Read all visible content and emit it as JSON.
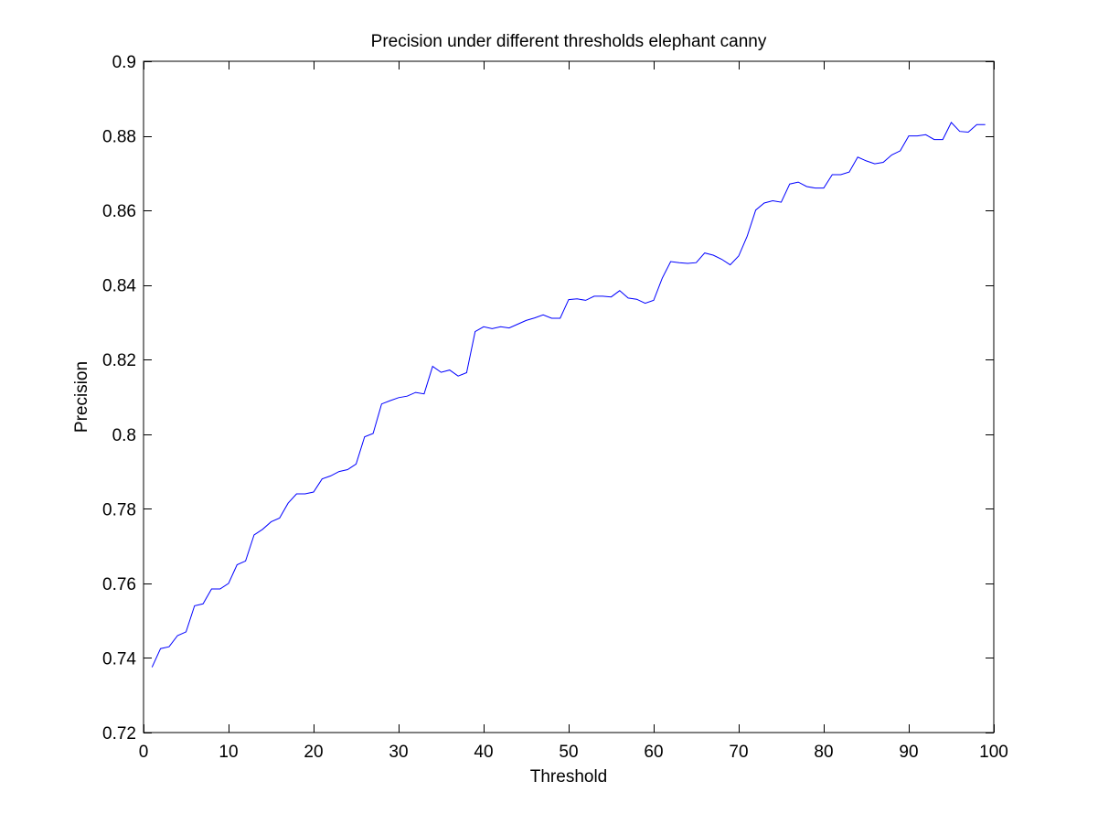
{
  "chart_data": {
    "type": "line",
    "title": "Precision under different thresholds elephant canny",
    "xlabel": "Threshold",
    "ylabel": "Precision",
    "xlim": [
      0,
      100
    ],
    "ylim": [
      0.72,
      0.9
    ],
    "x_ticks": [
      0,
      10,
      20,
      30,
      40,
      50,
      60,
      70,
      80,
      90,
      100
    ],
    "x_tick_labels": [
      "0",
      "10",
      "20",
      "30",
      "40",
      "50",
      "60",
      "70",
      "80",
      "90",
      "100"
    ],
    "y_ticks": [
      0.72,
      0.74,
      0.76,
      0.78,
      0.8,
      0.82,
      0.84,
      0.86,
      0.88,
      0.9
    ],
    "y_tick_labels": [
      "0.72",
      "0.74",
      "0.76",
      "0.78",
      "0.8",
      "0.82",
      "0.84",
      "0.86",
      "0.88",
      "0.9"
    ],
    "grid": false,
    "legend": "none",
    "line_color": "#0000ff",
    "axes_color": "#000000",
    "background_color": "#ffffff",
    "series": [
      {
        "x": [
          1,
          2,
          3,
          4,
          5,
          6,
          7,
          8,
          9,
          10,
          11,
          12,
          13,
          14,
          15,
          16,
          17,
          18,
          19,
          20,
          21,
          22,
          23,
          24,
          25,
          26,
          27,
          28,
          29,
          30,
          31,
          32,
          33,
          34,
          35,
          36,
          37,
          38,
          39,
          40,
          41,
          42,
          43,
          44,
          45,
          46,
          47,
          48,
          49,
          50,
          51,
          52,
          53,
          54,
          55,
          56,
          57,
          58,
          59,
          60,
          61,
          62,
          63,
          64,
          65,
          66,
          67,
          68,
          69,
          70,
          71,
          72,
          73,
          74,
          75,
          76,
          77,
          78,
          79,
          80,
          81,
          82,
          83,
          84,
          85,
          86,
          87,
          88,
          89,
          90,
          91,
          92,
          93,
          94,
          95,
          96,
          97,
          98,
          99
        ],
        "y": [
          0.7375,
          0.7425,
          0.743,
          0.746,
          0.747,
          0.754,
          0.7545,
          0.7585,
          0.7585,
          0.76,
          0.765,
          0.766,
          0.773,
          0.7745,
          0.7765,
          0.7775,
          0.7815,
          0.784,
          0.784,
          0.7845,
          0.788,
          0.7888,
          0.79,
          0.7905,
          0.792,
          0.7993,
          0.8002,
          0.8081,
          0.809,
          0.8098,
          0.8102,
          0.8112,
          0.8108,
          0.8182,
          0.8166,
          0.8172,
          0.8156,
          0.8165,
          0.8275,
          0.8288,
          0.8283,
          0.8288,
          0.8285,
          0.8295,
          0.8305,
          0.8312,
          0.832,
          0.8311,
          0.8311,
          0.8361,
          0.8363,
          0.8359,
          0.837,
          0.837,
          0.8368,
          0.8385,
          0.8365,
          0.8362,
          0.8351,
          0.8359,
          0.8418,
          0.8463,
          0.846,
          0.8458,
          0.846,
          0.8486,
          0.848,
          0.8469,
          0.8454,
          0.8478,
          0.8531,
          0.8601,
          0.862,
          0.8626,
          0.8622,
          0.8671,
          0.8676,
          0.8664,
          0.866,
          0.866,
          0.8696,
          0.8696,
          0.8703,
          0.8743,
          0.8733,
          0.8725,
          0.8729,
          0.8749,
          0.876,
          0.88,
          0.88,
          0.8803,
          0.879,
          0.879,
          0.8836,
          0.8812,
          0.881,
          0.883,
          0.883
        ]
      }
    ]
  }
}
